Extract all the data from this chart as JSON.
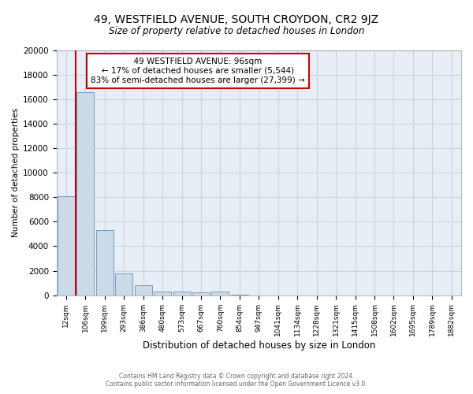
{
  "title": "49, WESTFIELD AVENUE, SOUTH CROYDON, CR2 9JZ",
  "subtitle": "Size of property relative to detached houses in London",
  "xlabel": "Distribution of detached houses by size in London",
  "ylabel": "Number of detached properties",
  "footnote1": "Contains HM Land Registry data © Crown copyright and database right 2024.",
  "footnote2": "Contains public sector information licensed under the Open Government Licence v3.0.",
  "annotation_line1": "49 WESTFIELD AVENUE: 96sqm",
  "annotation_line2": "← 17% of detached houses are smaller (5,544)",
  "annotation_line3": "83% of semi-detached houses are larger (27,399) →",
  "bar_color": "#ccd9e8",
  "bar_edge_color": "#7799bb",
  "red_line_color": "#cc0000",
  "annotation_box_edge": "#cc0000",
  "grid_color": "#c8d4e0",
  "background_color": "#e8eef5",
  "categories": [
    "12sqm",
    "106sqm",
    "199sqm",
    "293sqm",
    "386sqm",
    "480sqm",
    "573sqm",
    "667sqm",
    "760sqm",
    "854sqm",
    "947sqm",
    "1041sqm",
    "1134sqm",
    "1228sqm",
    "1321sqm",
    "1415sqm",
    "1508sqm",
    "1602sqm",
    "1695sqm",
    "1789sqm",
    "1882sqm"
  ],
  "values": [
    8100,
    16600,
    5300,
    1800,
    800,
    300,
    270,
    200,
    300,
    30,
    0,
    0,
    0,
    0,
    0,
    0,
    0,
    0,
    0,
    0,
    0
  ],
  "ylim": [
    0,
    20000
  ],
  "yticks": [
    0,
    2000,
    4000,
    6000,
    8000,
    10000,
    12000,
    14000,
    16000,
    18000,
    20000
  ],
  "red_line_x": 1.0
}
